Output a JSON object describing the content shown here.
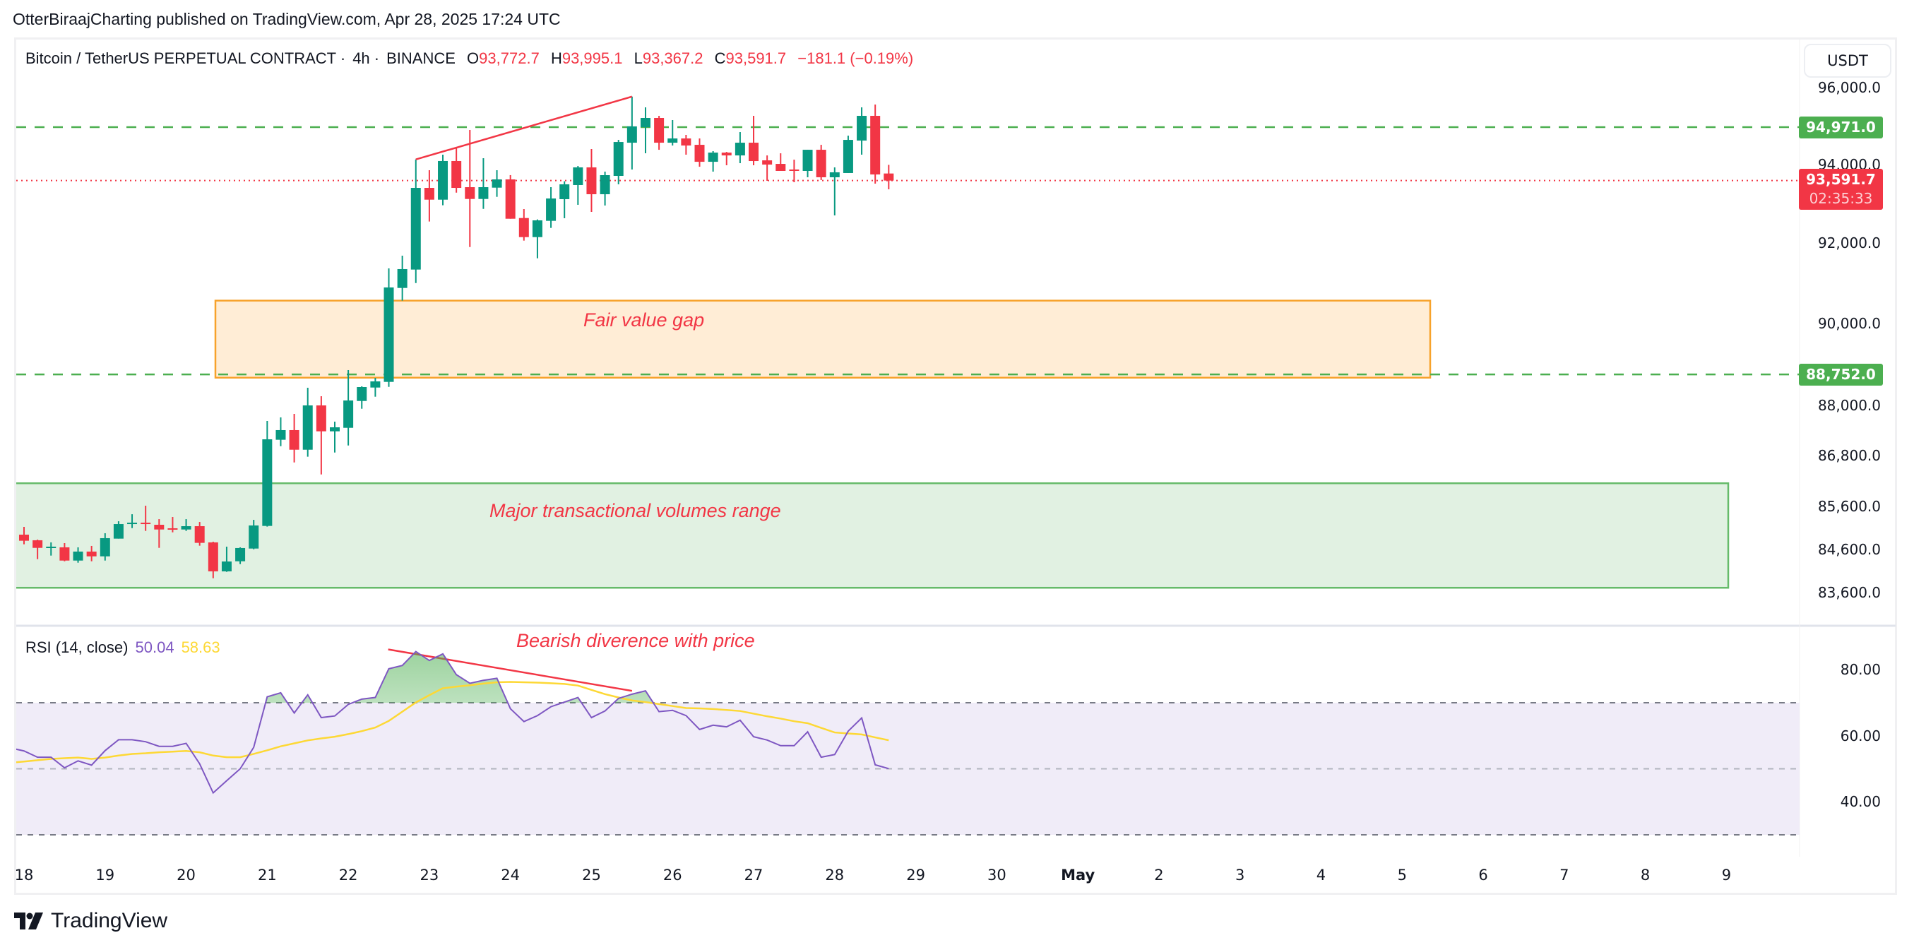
{
  "header": {
    "publish_line": "OtterBiraajCharting published on TradingView.com, Apr 28, 2025 17:24 UTC"
  },
  "legend": {
    "symbol": "Bitcoin / TetherUS PERPETUAL CONTRACT",
    "interval": "4h",
    "exchange": "BINANCE",
    "separator": "·",
    "open_label": "O",
    "open": "93,772.7",
    "high_label": "H",
    "high": "93,995.1",
    "low_label": "L",
    "low": "93,367.2",
    "close_label": "C",
    "close": "93,591.7",
    "change": "−181.1 (−0.19%)"
  },
  "currency_button": "USDT",
  "price_axis": {
    "ticks": [
      "96,000.0",
      "94,000.0",
      "92,000.0",
      "90,000.0",
      "88,000.0",
      "86,800.0",
      "85,600.0",
      "84,600.0",
      "83,600.0"
    ],
    "tick_values": [
      96000,
      94000,
      92000,
      90000,
      88000,
      86800,
      85600,
      84600,
      83600
    ],
    "scale": "log",
    "level_upper": {
      "value": 94971.0,
      "label": "94,971.0"
    },
    "level_lower": {
      "value": 88752.0,
      "label": "88,752.0"
    },
    "last_price": {
      "value": 93591.7,
      "label": "93,591.7",
      "countdown": "02:35:33"
    }
  },
  "time_axis": {
    "labels": [
      "18",
      "19",
      "20",
      "21",
      "22",
      "23",
      "24",
      "25",
      "26",
      "27",
      "28",
      "29",
      "30",
      "May",
      "2",
      "3",
      "4",
      "5",
      "6",
      "7",
      "8",
      "9"
    ],
    "bold_label": "May"
  },
  "annotations": {
    "fvg_label": "Fair value gap",
    "fvg_range": [
      88673,
      90564
    ],
    "volume_label": "Major transactional volumes range",
    "volume_range": [
      83715,
      86146
    ],
    "divergence_label": "Bearish diverence with price"
  },
  "rsi": {
    "title": "RSI (14, close)",
    "value": "50.04",
    "ma_value": "58.63",
    "ticks": [
      "80.00",
      "60.00",
      "40.00"
    ],
    "tick_values": [
      80,
      60,
      40
    ],
    "bands": [
      70,
      50,
      30
    ]
  },
  "colors": {
    "up": "#089981",
    "down": "#f23645",
    "level": "#4caf50",
    "fvg_fill": "#ffedd6",
    "fvg_border": "#f7a22b",
    "volume_fill": "#e1f1e2",
    "volume_border": "#66bb6a",
    "rsi": "#7e57c2",
    "rsi_ma": "#fdd835",
    "rsi_band": "#f0ecf8",
    "trendline": "#f23645"
  },
  "logo": {
    "text": "TradingView"
  },
  "chart_data": {
    "type": "candlestick",
    "interval": "4h",
    "ohlc": [
      [
        84811,
        84960,
        84790,
        84942
      ],
      [
        84942,
        85123,
        84718,
        84800
      ],
      [
        84811,
        84827,
        84374,
        84635
      ],
      [
        84635,
        84762,
        84456,
        84663
      ],
      [
        84647,
        84745,
        84325,
        84341
      ],
      [
        84341,
        84647,
        84292,
        84549
      ],
      [
        84549,
        84680,
        84325,
        84439
      ],
      [
        84439,
        84975,
        84341,
        84860
      ],
      [
        84849,
        85254,
        84849,
        85188
      ],
      [
        85199,
        85418,
        85095,
        85221
      ],
      [
        85221,
        85618,
        85029,
        85199
      ],
      [
        85172,
        85303,
        84635,
        85062
      ],
      [
        85090,
        85353,
        84996,
        85062
      ],
      [
        85062,
        85303,
        85029,
        85139
      ],
      [
        85139,
        85237,
        84685,
        84751
      ],
      [
        84762,
        84778,
        83934,
        84092
      ],
      [
        84092,
        84663,
        84081,
        84320
      ],
      [
        84325,
        84647,
        84260,
        84631
      ],
      [
        84619,
        85287,
        84603,
        85156
      ],
      [
        85145,
        87629,
        85128,
        87189
      ],
      [
        87178,
        87714,
        87025,
        87409
      ],
      [
        87409,
        87799,
        86639,
        86941
      ],
      [
        86941,
        88429,
        86774,
        88002
      ],
      [
        88002,
        88224,
        86355,
        87380
      ],
      [
        87380,
        87612,
        86874,
        87476
      ],
      [
        87464,
        88857,
        87042,
        88121
      ],
      [
        88109,
        88463,
        87922,
        88446
      ],
      [
        88434,
        88669,
        88212,
        88583
      ],
      [
        88571,
        91368,
        88451,
        90891
      ],
      [
        90879,
        91686,
        90564,
        91350
      ],
      [
        91338,
        94135,
        91002,
        93404
      ],
      [
        93404,
        93857,
        92547,
        93103
      ],
      [
        93103,
        94258,
        92960,
        94094
      ],
      [
        94094,
        94440,
        93283,
        93404
      ],
      [
        93422,
        94898,
        91904,
        93121
      ],
      [
        93121,
        94167,
        92869,
        93422
      ],
      [
        93410,
        93857,
        93175,
        93621
      ],
      [
        93621,
        93731,
        92618,
        92618
      ],
      [
        92636,
        92864,
        92065,
        92153
      ],
      [
        92153,
        92600,
        91620,
        92577
      ],
      [
        92565,
        93422,
        92386,
        93133
      ],
      [
        93116,
        93573,
        92631,
        93495
      ],
      [
        93477,
        93965,
        92972,
        93930
      ],
      [
        93930,
        94403,
        92792,
        93242
      ],
      [
        93242,
        93821,
        92954,
        93730
      ],
      [
        93712,
        94640,
        93495,
        94585
      ],
      [
        94567,
        95769,
        93875,
        94990
      ],
      [
        94971,
        95487,
        94293,
        95210
      ],
      [
        95210,
        95265,
        94384,
        94567
      ],
      [
        94567,
        95155,
        94494,
        94677
      ],
      [
        94677,
        94769,
        94257,
        94494
      ],
      [
        94512,
        94677,
        93947,
        94074
      ],
      [
        94074,
        94348,
        93821,
        94311
      ],
      [
        94311,
        94329,
        93984,
        94238
      ],
      [
        94238,
        94842,
        94038,
        94567
      ],
      [
        94567,
        95265,
        93984,
        94093
      ],
      [
        94111,
        94238,
        93586,
        94002
      ],
      [
        94020,
        94293,
        93839,
        93839
      ],
      [
        93875,
        94129,
        93549,
        93839
      ],
      [
        93839,
        94384,
        93676,
        94384
      ],
      [
        94384,
        94512,
        93604,
        93676
      ],
      [
        93676,
        93930,
        92702,
        93803
      ],
      [
        93785,
        94750,
        93785,
        94640
      ],
      [
        94622,
        95487,
        94257,
        95265
      ],
      [
        95265,
        95561,
        93513,
        93748
      ],
      [
        93772.7,
        93995.1,
        93367.2,
        93591.7
      ]
    ],
    "rsi": [
      56.3,
      55.4,
      53.5,
      53.5,
      50.3,
      52.4,
      51.1,
      55.5,
      58.8,
      58.8,
      58.2,
      56.8,
      56.8,
      57.7,
      51.5,
      42.7,
      46.4,
      50.0,
      56.5,
      71.8,
      73.0,
      66.9,
      72.4,
      65.5,
      66.0,
      69.5,
      71.1,
      71.6,
      80.3,
      81.3,
      85.5,
      82.8,
      84.8,
      78.5,
      75.9,
      76.8,
      77.4,
      68.2,
      64.3,
      66.1,
      68.8,
      70.2,
      71.6,
      65.5,
      67.5,
      71.3,
      72.6,
      73.6,
      67.3,
      67.7,
      66.1,
      61.9,
      63.2,
      62.7,
      64.7,
      59.7,
      58.7,
      57.0,
      57.0,
      61.2,
      53.5,
      54.3,
      61.4,
      65.4,
      51.2,
      50.04
    ],
    "rsi_ma": [
      51.8,
      52.2,
      52.6,
      53.0,
      53.2,
      53.4,
      53.0,
      53.4,
      54.0,
      54.5,
      54.7,
      55.0,
      55.2,
      55.4,
      55.0,
      54.0,
      53.5,
      53.5,
      54.5,
      55.6,
      56.8,
      57.7,
      58.6,
      59.2,
      59.7,
      60.5,
      61.4,
      62.5,
      64.5,
      67.3,
      70.1,
      72.3,
      74.4,
      74.9,
      75.3,
      75.8,
      76.2,
      76.3,
      76.2,
      76.1,
      75.9,
      75.7,
      75.2,
      73.9,
      72.6,
      71.6,
      70.7,
      70.2,
      69.6,
      69.0,
      68.4,
      68.3,
      68.1,
      67.8,
      67.5,
      66.7,
      65.9,
      65.2,
      64.4,
      63.8,
      62.4,
      61.0,
      60.7,
      60.4,
      59.5,
      58.63
    ],
    "price_trendline": [
      [
        30,
        94135
      ],
      [
        46,
        95769
      ]
    ],
    "rsi_trendline": [
      [
        29,
        85.5
      ],
      [
        46,
        73.6
      ]
    ]
  }
}
